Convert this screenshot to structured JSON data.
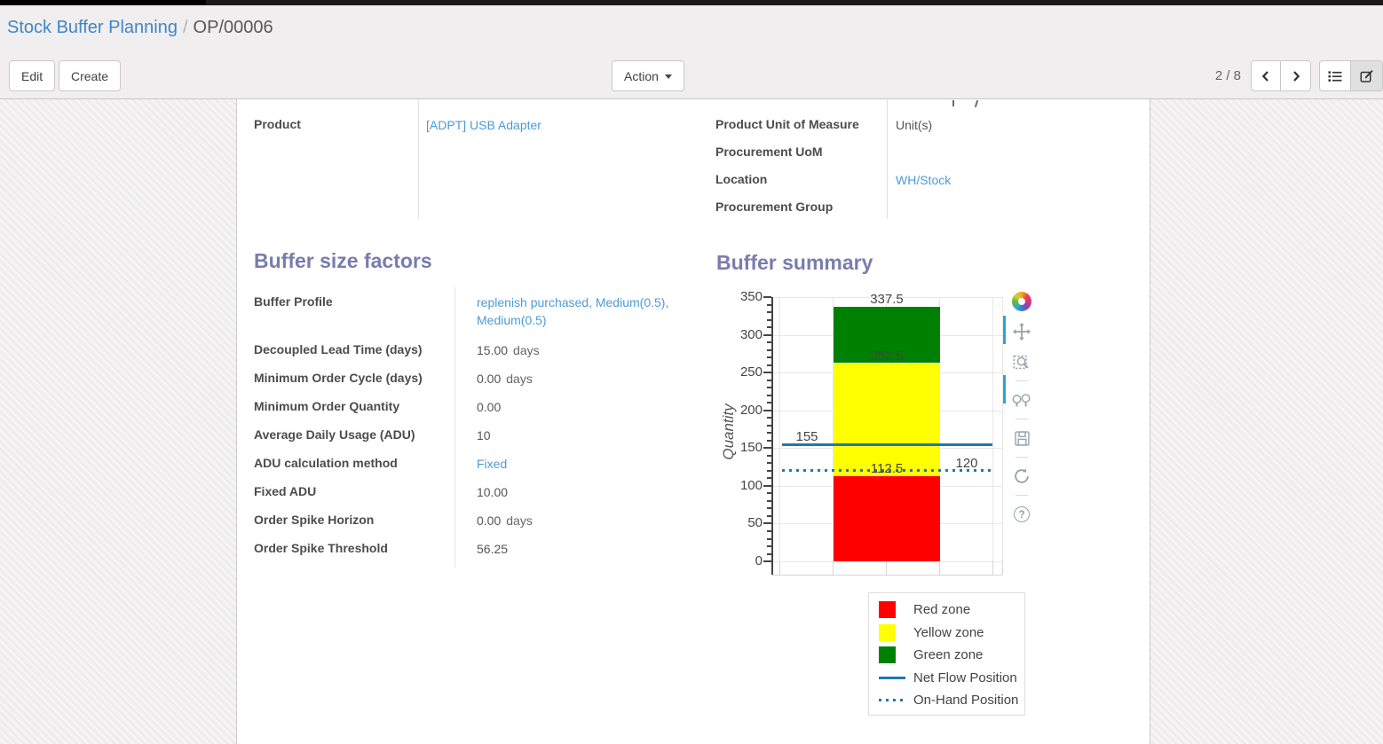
{
  "breadcrumb": {
    "parent": "Stock Buffer Planning",
    "separator": "/",
    "current": "OP/00006"
  },
  "toolbar": {
    "edit": "Edit",
    "create": "Create",
    "action": "Action",
    "pager": "2 / 8"
  },
  "form": {
    "top_left": [
      {
        "label": "Product",
        "value": "[ADPT] USB Adapter",
        "link": true
      }
    ],
    "top_right": [
      {
        "label": "Product Unit of Measure",
        "value": "Unit(s)",
        "link": false
      },
      {
        "label": "Procurement UoM",
        "value": "",
        "link": false
      },
      {
        "label": "Location",
        "value": "WH/Stock",
        "link": true
      },
      {
        "label": "Procurement Group",
        "value": "",
        "link": false
      }
    ],
    "sections": {
      "factors": {
        "title": "Buffer size factors",
        "rows": [
          {
            "label": "Buffer Profile",
            "value": "replenish purchased, Medium(0.5), Medium(0.5)",
            "link": true
          },
          {
            "label": "Decoupled Lead Time (days)",
            "value": "15.00",
            "unit": "days"
          },
          {
            "label": "Minimum Order Cycle (days)",
            "value": "0.00",
            "unit": "days"
          },
          {
            "label": "Minimum Order Quantity",
            "value": "0.00"
          },
          {
            "label": "Average Daily Usage (ADU)",
            "value": "10"
          },
          {
            "label": "ADU calculation method",
            "value": "Fixed",
            "link": true
          },
          {
            "label": "Fixed ADU",
            "value": "10.00"
          },
          {
            "label": "Order Spike Horizon",
            "value": "0.00",
            "unit": "days"
          },
          {
            "label": "Order Spike Threshold",
            "value": "56.25"
          }
        ]
      },
      "summary": {
        "title": "Buffer summary"
      }
    }
  },
  "chart_data": {
    "type": "bar",
    "stacked": true,
    "categories": [
      ""
    ],
    "series": [
      {
        "name": "Red zone",
        "from": 0,
        "to": 112.5,
        "color": "#ff0000"
      },
      {
        "name": "Yellow zone",
        "from": 112.5,
        "to": 262.5,
        "color": "#ffff00"
      },
      {
        "name": "Green zone",
        "from": 262.5,
        "to": 337.5,
        "color": "#008000"
      }
    ],
    "lines": [
      {
        "name": "Net Flow Position",
        "value": 155,
        "dotted": false,
        "color": "#2077b4"
      },
      {
        "name": "On-Hand Position",
        "value": 120,
        "dotted": true,
        "color": "#2077b4"
      }
    ],
    "annotations": [
      {
        "text": "337.5",
        "value": 337.5,
        "align": "bar"
      },
      {
        "text": "262.5",
        "value": 262.5,
        "align": "bar"
      },
      {
        "text": "112.5",
        "value": 112.5,
        "align": "bar"
      },
      {
        "text": "155",
        "value": 155,
        "align": "left"
      },
      {
        "text": "120",
        "value": 120,
        "align": "right"
      }
    ],
    "ylabel": "Quantity",
    "xlabel": "",
    "ylim": [
      0,
      350
    ],
    "yticks": [
      0,
      50,
      100,
      150,
      200,
      250,
      300,
      350
    ],
    "grid": true,
    "legend_position": "below-right",
    "legend": [
      {
        "label": "Red zone",
        "swatch": "square",
        "color": "#ff0000"
      },
      {
        "label": "Yellow zone",
        "swatch": "square",
        "color": "#ffff00"
      },
      {
        "label": "Green zone",
        "swatch": "square",
        "color": "#008000"
      },
      {
        "label": "Net Flow Position",
        "swatch": "line",
        "color": "#2077b4"
      },
      {
        "label": "On-Hand Position",
        "swatch": "dotted",
        "color": "#2077b4"
      }
    ]
  },
  "chart_toolbar": {
    "icons": [
      "plotly-logo",
      "pan",
      "zoom-box",
      "zoom-in-out",
      "save",
      "reset",
      "help"
    ],
    "help_glyph": "?"
  }
}
